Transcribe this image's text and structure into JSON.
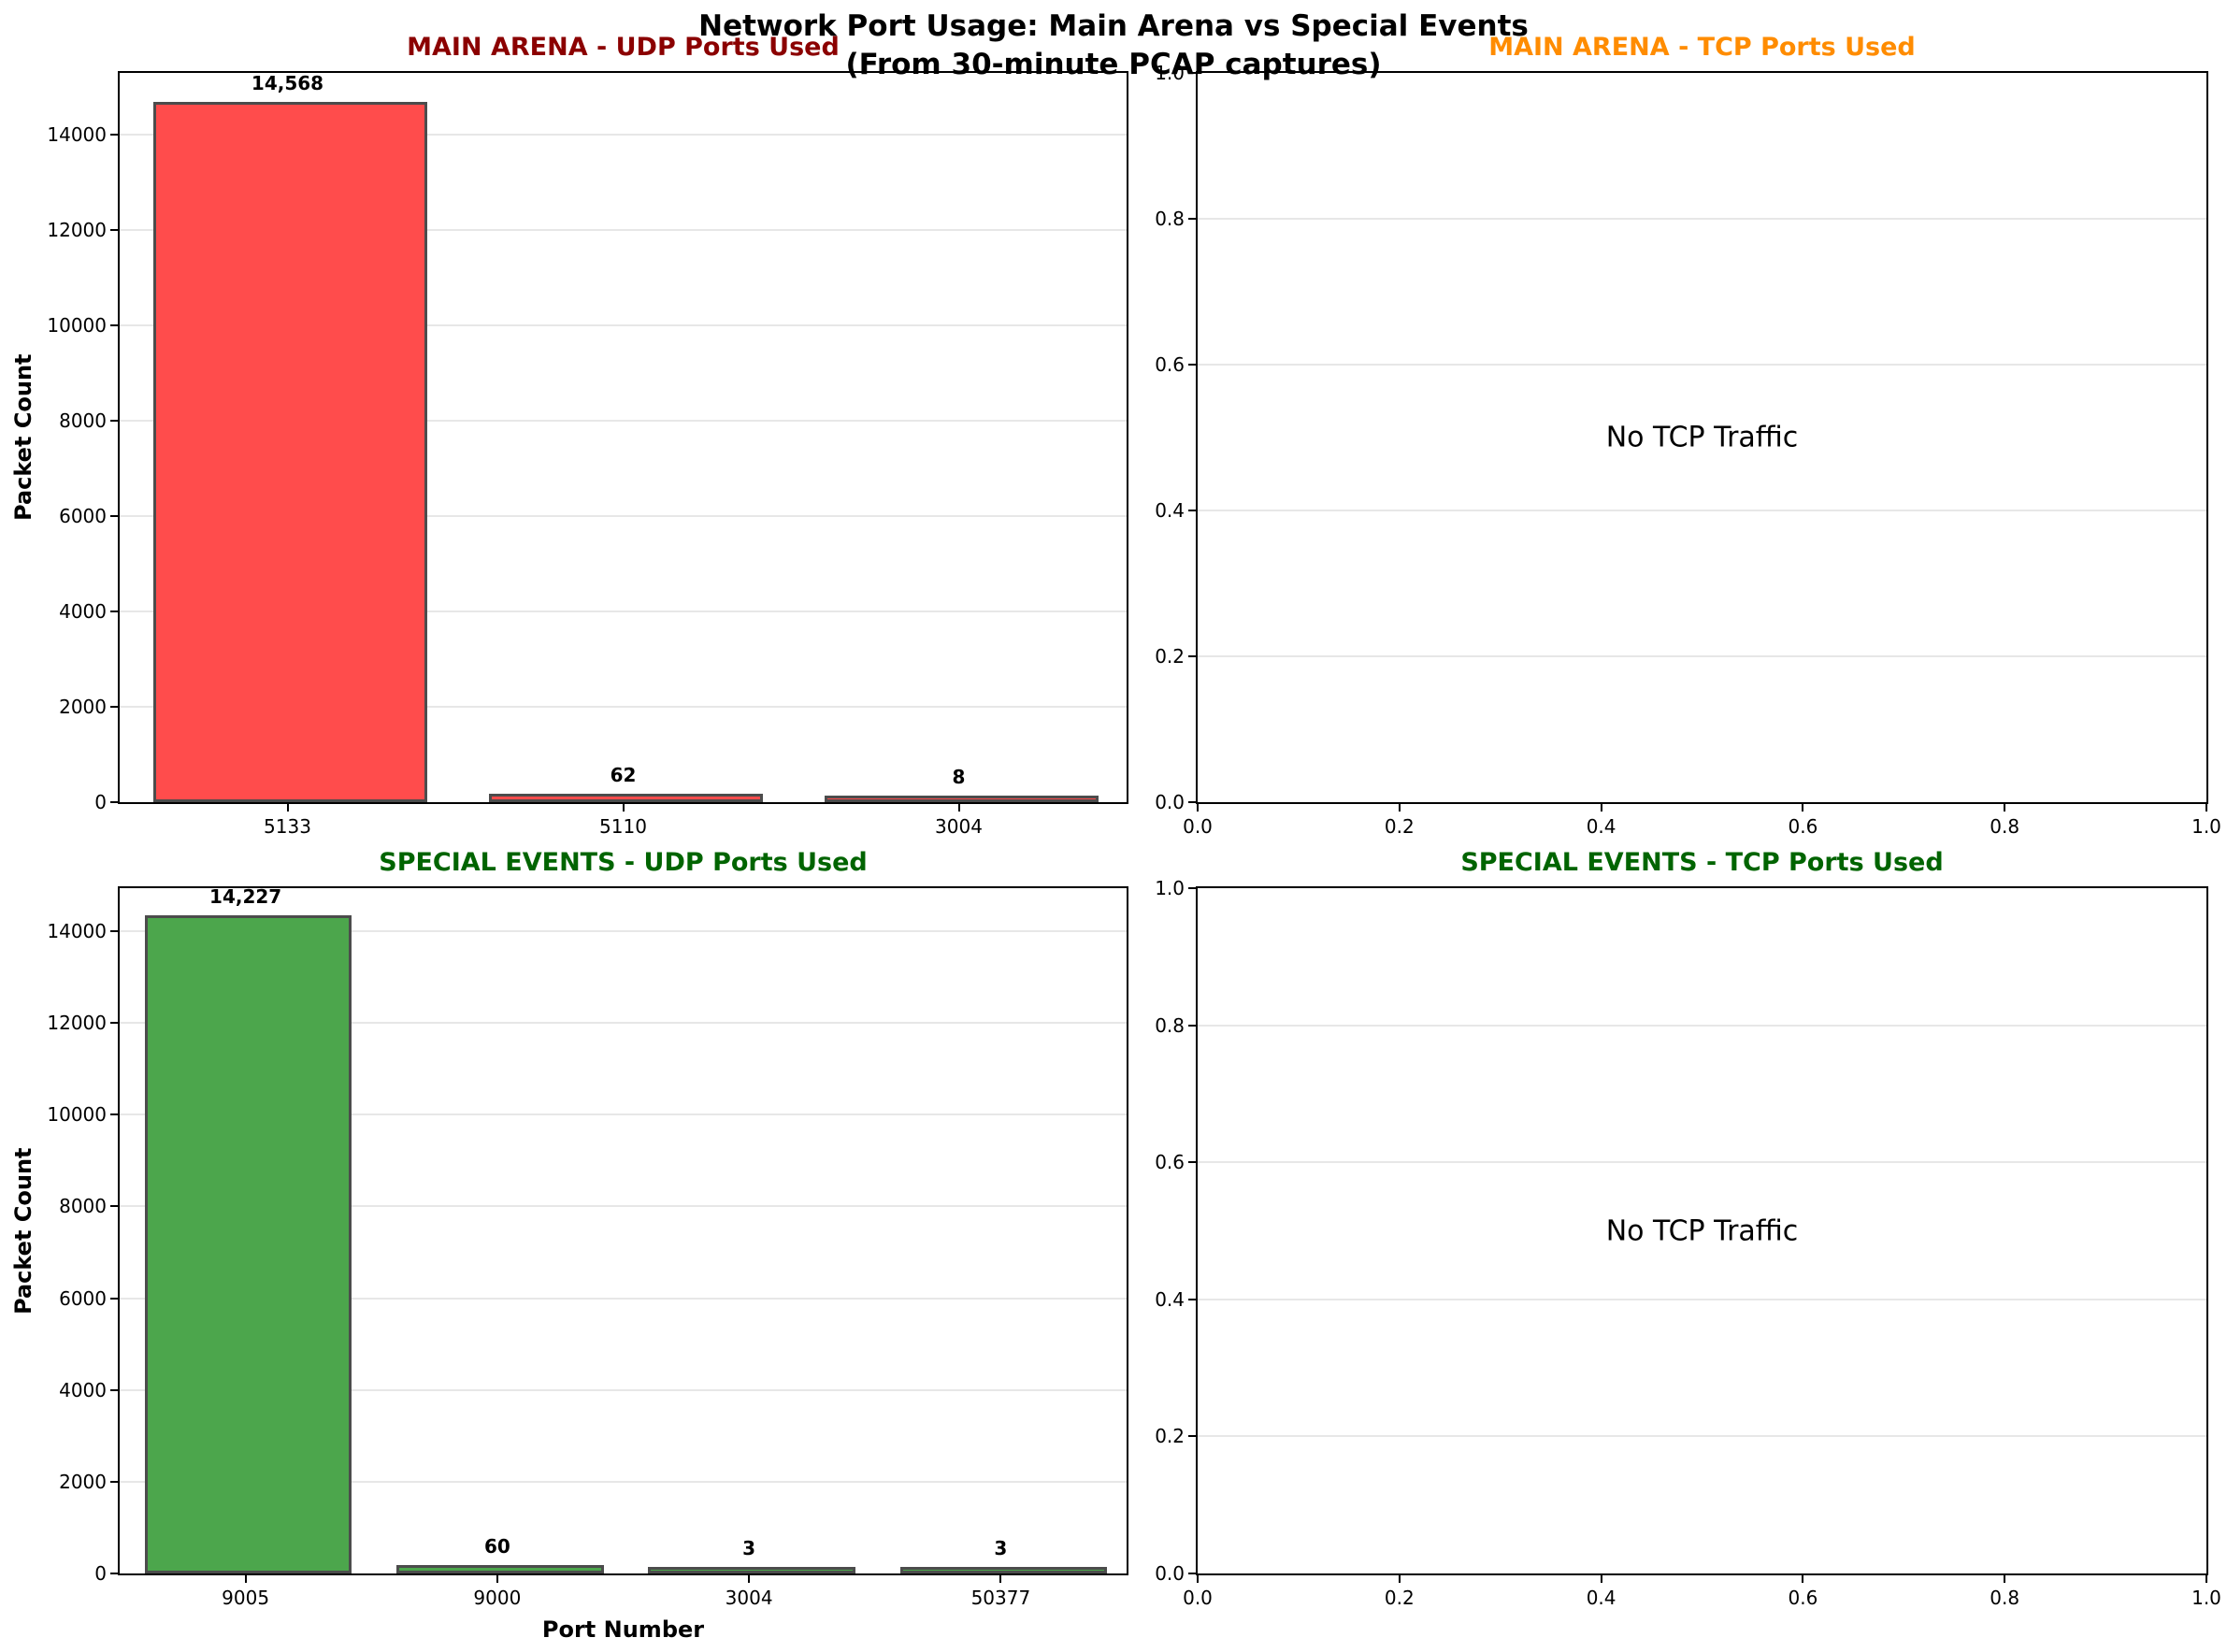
{
  "figure": {
    "title_line1": "Network Port Usage: Main Arena vs Special Events",
    "title_line2": "(From 30-minute PCAP captures)",
    "background_color": "#FFFFFF",
    "spine_color": "#000000",
    "gridline_color": "#E7E7E7"
  },
  "chart_data": [
    {
      "id": "main-arena-udp",
      "type": "bar",
      "title": "MAIN ARENA - UDP Ports Used",
      "title_color": "#8B0000",
      "categories": [
        "5133",
        "5110",
        "3004"
      ],
      "values": [
        14568,
        62,
        8
      ],
      "value_labels": [
        "14,568",
        "62",
        "8"
      ],
      "bar_color": "#FF4C4C",
      "bar_edge_color": "#4C4C4C",
      "xlabel": "",
      "ylabel": "Packet Count",
      "ylim": [
        0,
        15296
      ],
      "yticks": [
        0,
        2000,
        4000,
        6000,
        8000,
        10000,
        12000,
        14000
      ],
      "grid": "y",
      "legend": "none"
    },
    {
      "id": "main-arena-tcp",
      "type": "empty",
      "title": "MAIN ARENA - TCP Ports Used",
      "title_color": "#FF8C00",
      "annotation": "No TCP Traffic",
      "xlabel": "",
      "ylabel": "",
      "xlim": [
        0.0,
        1.0
      ],
      "ylim": [
        0.0,
        1.0
      ],
      "xticks": [
        "0.0",
        "0.2",
        "0.4",
        "0.6",
        "0.8",
        "1.0"
      ],
      "yticks": [
        "0.0",
        "0.2",
        "0.4",
        "0.6",
        "0.8",
        "1.0"
      ],
      "grid": "y",
      "legend": "none"
    },
    {
      "id": "special-events-udp",
      "type": "bar",
      "title": "SPECIAL EVENTS - UDP Ports Used",
      "title_color": "#006400",
      "categories": [
        "9005",
        "9000",
        "3004",
        "50377"
      ],
      "values": [
        14227,
        60,
        3,
        3
      ],
      "value_labels": [
        "14,227",
        "60",
        "3",
        "3"
      ],
      "bar_color": "#4CA64C",
      "bar_edge_color": "#4C4C4C",
      "xlabel": "Port Number",
      "ylabel": "Packet Count",
      "ylim": [
        0,
        14938
      ],
      "yticks": [
        0,
        2000,
        4000,
        6000,
        8000,
        10000,
        12000,
        14000
      ],
      "grid": "y",
      "legend": "none"
    },
    {
      "id": "special-events-tcp",
      "type": "empty",
      "title": "SPECIAL EVENTS - TCP Ports Used",
      "title_color": "#006400",
      "annotation": "No TCP Traffic",
      "xlabel": "",
      "ylabel": "",
      "xlim": [
        0.0,
        1.0
      ],
      "ylim": [
        0.0,
        1.0
      ],
      "xticks": [
        "0.0",
        "0.2",
        "0.4",
        "0.6",
        "0.8",
        "1.0"
      ],
      "yticks": [
        "0.0",
        "0.2",
        "0.4",
        "0.6",
        "0.8",
        "1.0"
      ],
      "grid": "y",
      "legend": "none"
    }
  ]
}
